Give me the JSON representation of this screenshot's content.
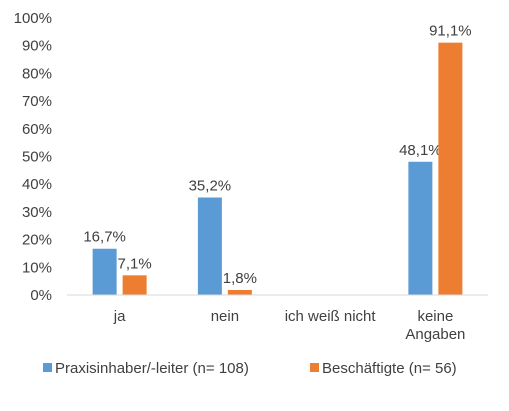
{
  "chart_data": {
    "type": "bar",
    "categories": [
      [
        "ja"
      ],
      [
        "nein"
      ],
      [
        "ich weiß nicht"
      ],
      [
        "keine",
        "Angaben"
      ]
    ],
    "series": [
      {
        "name": "Praxisinhaber/-leiter (n= 108)",
        "color": "#5b9bd5",
        "values": [
          16.7,
          35.2,
          null,
          48.1
        ],
        "labels": [
          "16,7%",
          "35,2%",
          "",
          "48,1%"
        ]
      },
      {
        "name": "Beschäftigte (n= 56)",
        "color": "#ed7d31",
        "values": [
          7.1,
          1.8,
          null,
          91.1
        ],
        "labels": [
          "7,1%",
          "1,8%",
          "",
          "91,1%"
        ]
      }
    ],
    "yticks": [
      "0%",
      "10%",
      "20%",
      "30%",
      "40%",
      "50%",
      "60%",
      "70%",
      "80%",
      "90%",
      "100%"
    ],
    "ylim": [
      0,
      100
    ],
    "grid": false,
    "legend_position": "bottom"
  }
}
